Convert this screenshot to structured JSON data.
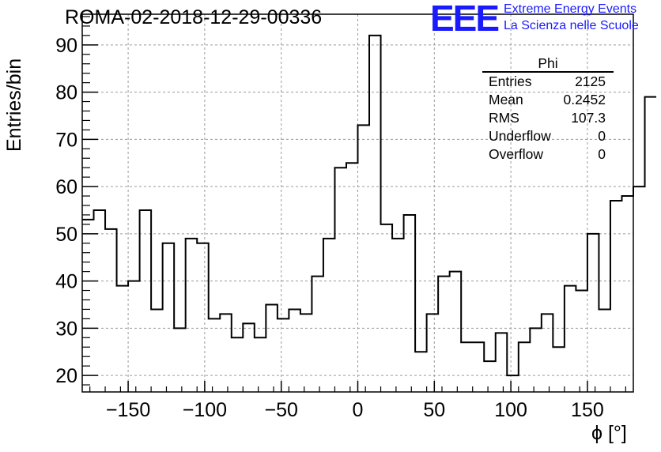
{
  "header": {
    "title": "ROMA-02-2018-12-29-00336",
    "logo_text": "EEE",
    "logo_line1": "Extreme Energy Events",
    "logo_line2": "La Scienza nelle Scuole"
  },
  "stats_box": {
    "name": "Phi",
    "rows": [
      {
        "label": "Entries",
        "value": "2125"
      },
      {
        "label": "Mean",
        "value": "0.2452"
      },
      {
        "label": "RMS",
        "value": "107.3"
      },
      {
        "label": "Underflow",
        "value": "0"
      },
      {
        "label": "Overflow",
        "value": "0"
      }
    ]
  },
  "chart_data": {
    "type": "histogram",
    "title": "ROMA-02-2018-12-29-00336",
    "xlabel": "ϕ [°]",
    "ylabel": "Entries/bin",
    "xlim": [
      -180,
      180
    ],
    "ylim": [
      16.5,
      96.5
    ],
    "bin_width": 7.5,
    "grid": true,
    "x_ticks": [
      -150,
      -100,
      -50,
      0,
      50,
      100,
      150
    ],
    "y_ticks": [
      20,
      30,
      40,
      50,
      60,
      70,
      80,
      90
    ],
    "line_color": "#000000",
    "values": [
      53,
      55,
      51,
      39,
      40,
      55,
      34,
      48,
      30,
      49,
      48,
      32,
      33,
      28,
      31,
      28,
      35,
      32,
      34,
      33,
      41,
      49,
      64,
      65,
      73,
      92,
      52,
      49,
      54,
      25,
      33,
      41,
      42,
      27,
      27,
      23,
      29,
      20,
      27,
      30,
      33,
      26,
      39,
      38,
      50,
      34,
      57,
      58,
      60,
      79
    ]
  }
}
